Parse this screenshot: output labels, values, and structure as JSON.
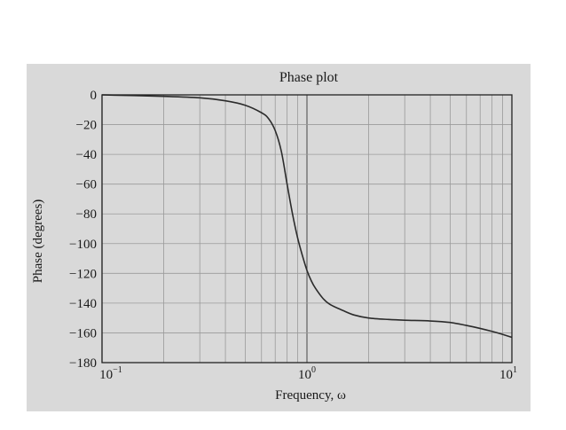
{
  "chart_data": {
    "type": "line",
    "title": "Phase plot",
    "xlabel": "Frequency, ω",
    "ylabel": "Phase (degrees)",
    "xscale": "log",
    "xlim": [
      0.1,
      10
    ],
    "ylim": [
      -180,
      0
    ],
    "grid": true,
    "x_ticks": [
      {
        "base": "10",
        "exp": "−1"
      },
      {
        "base": "10",
        "exp": "0"
      },
      {
        "base": "10",
        "exp": "1"
      }
    ],
    "y_ticks": [
      "0",
      "−20",
      "−40",
      "−60",
      "−80",
      "−100",
      "−120",
      "−140",
      "−160",
      "−180"
    ],
    "series": [
      {
        "x": [
          0.1,
          0.2,
          0.3,
          0.4,
          0.5,
          0.6,
          0.65,
          0.7,
          0.75,
          0.8,
          0.85,
          0.9,
          0.95,
          1.0,
          1.05,
          1.1,
          1.2,
          1.3,
          1.5,
          1.7,
          2.0,
          2.5,
          3.0,
          4.0,
          5.0,
          6.0,
          7.0,
          8.0,
          9.0,
          10.0
        ],
        "y": [
          0,
          -1,
          -2,
          -4,
          -7,
          -12,
          -16,
          -24,
          -38,
          -60,
          -80,
          -96,
          -108,
          -118,
          -125,
          -130,
          -137,
          -141,
          -145,
          -148,
          -150,
          -151,
          -151.5,
          -152,
          -153,
          -155,
          -157,
          -159,
          -161,
          -163
        ]
      }
    ]
  },
  "colors": {
    "background": "#d9d9d9",
    "curve": "#2b2b2b",
    "axes": "#222222"
  }
}
